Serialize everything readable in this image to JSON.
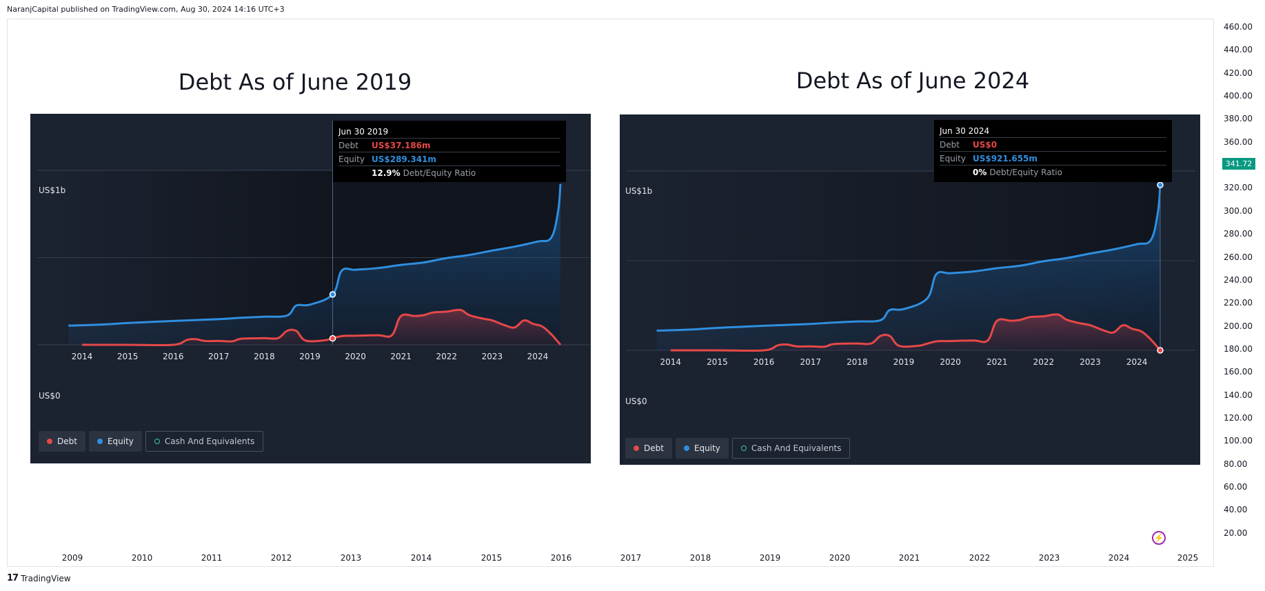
{
  "header": {
    "published": "NaranjCapital published on TradingView.com, Aug 30, 2024 14:16 UTC+3"
  },
  "footer": {
    "brand": "TradingView",
    "logo": "tv-logo-icon"
  },
  "price_axis": {
    "ticks": [
      "460.00",
      "440.00",
      "420.00",
      "400.00",
      "380.00",
      "360.00",
      "340.00",
      "320.00",
      "300.00",
      "280.00",
      "260.00",
      "240.00",
      "220.00",
      "200.00",
      "180.00",
      "160.00",
      "140.00",
      "120.00",
      "100.00",
      "80.00",
      "60.00",
      "40.00",
      "20.00"
    ],
    "values": [
      460,
      440,
      420,
      400,
      380,
      360,
      340,
      320,
      300,
      280,
      260,
      240,
      220,
      200,
      180,
      160,
      140,
      120,
      100,
      80,
      60,
      40,
      20
    ],
    "current_price": "341.72",
    "current_value": 341.72,
    "badge_color": "#089981"
  },
  "time_axis": {
    "ticks": [
      "2009",
      "2010",
      "2011",
      "2012",
      "2013",
      "2014",
      "2015",
      "2016",
      "2017",
      "2018",
      "2019",
      "2020",
      "2021",
      "2022",
      "2023",
      "2024",
      "2025"
    ]
  },
  "colors": {
    "debt": "#e64848",
    "equity": "#2f8fe0",
    "cash": "#3cc8a8",
    "panel_bg": "#1b2230"
  },
  "chart_data": [
    {
      "type": "area",
      "title": "Debt As of June 2019",
      "y_top_label": "US$1b",
      "y_bottom_label": "US$0",
      "ylim": [
        0,
        1000
      ],
      "x_ticks": [
        "2014",
        "2015",
        "2016",
        "2017",
        "2018",
        "2019",
        "2020",
        "2021",
        "2022",
        "2023",
        "2024"
      ],
      "tooltip": {
        "date": "Jun 30 2019",
        "debt_label": "Debt",
        "debt_value": "US$37.186m",
        "equity_label": "Equity",
        "equity_value": "US$289.341m",
        "ratio_value": "12.9%",
        "ratio_label": "Debt/Equity Ratio"
      },
      "cursor_x": 2019.5,
      "x_end": 2024.5,
      "legend": [
        "Debt",
        "Equity",
        "Cash And Equivalents"
      ],
      "series": [
        {
          "name": "Equity",
          "points": [
            [
              2013.7,
              110
            ],
            [
              2014.0,
              112
            ],
            [
              2014.5,
              117
            ],
            [
              2015.0,
              125
            ],
            [
              2015.5,
              131
            ],
            [
              2016.0,
              137
            ],
            [
              2016.5,
              142
            ],
            [
              2017.0,
              147
            ],
            [
              2017.5,
              155
            ],
            [
              2018.0,
              161
            ],
            [
              2018.5,
              168
            ],
            [
              2018.7,
              225
            ],
            [
              2019.0,
              230
            ],
            [
              2019.5,
              289
            ],
            [
              2019.7,
              425
            ],
            [
              2020.0,
              430
            ],
            [
              2020.5,
              440
            ],
            [
              2021.0,
              458
            ],
            [
              2021.5,
              472
            ],
            [
              2022.0,
              497
            ],
            [
              2022.5,
              515
            ],
            [
              2023.0,
              540
            ],
            [
              2023.5,
              563
            ],
            [
              2024.0,
              592
            ],
            [
              2024.3,
              615
            ],
            [
              2024.45,
              770
            ],
            [
              2024.5,
              922
            ]
          ]
        },
        {
          "name": "Debt",
          "points": [
            [
              2014.0,
              0
            ],
            [
              2015.0,
              0
            ],
            [
              2016.0,
              0
            ],
            [
              2016.3,
              28
            ],
            [
              2016.5,
              32
            ],
            [
              2016.7,
              22
            ],
            [
              2017.0,
              22
            ],
            [
              2017.3,
              20
            ],
            [
              2017.5,
              35
            ],
            [
              2018.0,
              38
            ],
            [
              2018.3,
              38
            ],
            [
              2018.5,
              80
            ],
            [
              2018.7,
              80
            ],
            [
              2018.9,
              25
            ],
            [
              2019.3,
              25
            ],
            [
              2019.5,
              37
            ],
            [
              2019.7,
              50
            ],
            [
              2020.0,
              52
            ],
            [
              2020.5,
              55
            ],
            [
              2020.8,
              55
            ],
            [
              2021.0,
              165
            ],
            [
              2021.3,
              165
            ],
            [
              2021.5,
              170
            ],
            [
              2021.7,
              185
            ],
            [
              2022.0,
              190
            ],
            [
              2022.3,
              200
            ],
            [
              2022.5,
              170
            ],
            [
              2022.8,
              150
            ],
            [
              2023.0,
              140
            ],
            [
              2023.3,
              110
            ],
            [
              2023.5,
              100
            ],
            [
              2023.7,
              140
            ],
            [
              2023.9,
              120
            ],
            [
              2024.1,
              105
            ],
            [
              2024.3,
              60
            ],
            [
              2024.5,
              0
            ]
          ]
        }
      ]
    },
    {
      "type": "area",
      "title": "Debt As of June 2024",
      "y_top_label": "US$1b",
      "y_bottom_label": "US$0",
      "ylim": [
        0,
        1000
      ],
      "x_ticks": [
        "2014",
        "2015",
        "2016",
        "2017",
        "2018",
        "2019",
        "2020",
        "2021",
        "2022",
        "2023",
        "2024"
      ],
      "tooltip": {
        "date": "Jun 30 2024",
        "debt_label": "Debt",
        "debt_value": "US$0",
        "equity_label": "Equity",
        "equity_value": "US$921.655m",
        "ratio_value": "0%",
        "ratio_label": "Debt/Equity Ratio"
      },
      "cursor_x": 2024.5,
      "x_end": 2024.5,
      "legend": [
        "Debt",
        "Equity",
        "Cash And Equivalents"
      ],
      "series": [
        {
          "name": "Equity",
          "points": [
            [
              2013.7,
              110
            ],
            [
              2014.0,
              112
            ],
            [
              2014.5,
              117
            ],
            [
              2015.0,
              125
            ],
            [
              2015.5,
              131
            ],
            [
              2016.0,
              137
            ],
            [
              2016.5,
              142
            ],
            [
              2017.0,
              147
            ],
            [
              2017.5,
              155
            ],
            [
              2018.0,
              161
            ],
            [
              2018.5,
              168
            ],
            [
              2018.7,
              225
            ],
            [
              2019.0,
              230
            ],
            [
              2019.5,
              289
            ],
            [
              2019.7,
              425
            ],
            [
              2020.0,
              430
            ],
            [
              2020.5,
              440
            ],
            [
              2021.0,
              458
            ],
            [
              2021.5,
              472
            ],
            [
              2022.0,
              497
            ],
            [
              2022.5,
              515
            ],
            [
              2023.0,
              540
            ],
            [
              2023.5,
              563
            ],
            [
              2024.0,
              592
            ],
            [
              2024.3,
              615
            ],
            [
              2024.45,
              770
            ],
            [
              2024.5,
              922
            ]
          ]
        },
        {
          "name": "Debt",
          "points": [
            [
              2014.0,
              0
            ],
            [
              2015.0,
              0
            ],
            [
              2016.0,
              0
            ],
            [
              2016.3,
              28
            ],
            [
              2016.5,
              32
            ],
            [
              2016.7,
              22
            ],
            [
              2017.0,
              22
            ],
            [
              2017.3,
              20
            ],
            [
              2017.5,
              35
            ],
            [
              2018.0,
              38
            ],
            [
              2018.3,
              38
            ],
            [
              2018.5,
              80
            ],
            [
              2018.7,
              80
            ],
            [
              2018.9,
              25
            ],
            [
              2019.3,
              25
            ],
            [
              2019.5,
              37
            ],
            [
              2019.7,
              50
            ],
            [
              2020.0,
              52
            ],
            [
              2020.5,
              55
            ],
            [
              2020.8,
              55
            ],
            [
              2021.0,
              165
            ],
            [
              2021.3,
              165
            ],
            [
              2021.5,
              170
            ],
            [
              2021.7,
              185
            ],
            [
              2022.0,
              190
            ],
            [
              2022.3,
              200
            ],
            [
              2022.5,
              170
            ],
            [
              2022.8,
              150
            ],
            [
              2023.0,
              140
            ],
            [
              2023.3,
              110
            ],
            [
              2023.5,
              100
            ],
            [
              2023.7,
              140
            ],
            [
              2023.9,
              120
            ],
            [
              2024.1,
              105
            ],
            [
              2024.3,
              60
            ],
            [
              2024.5,
              0
            ]
          ]
        }
      ]
    }
  ]
}
